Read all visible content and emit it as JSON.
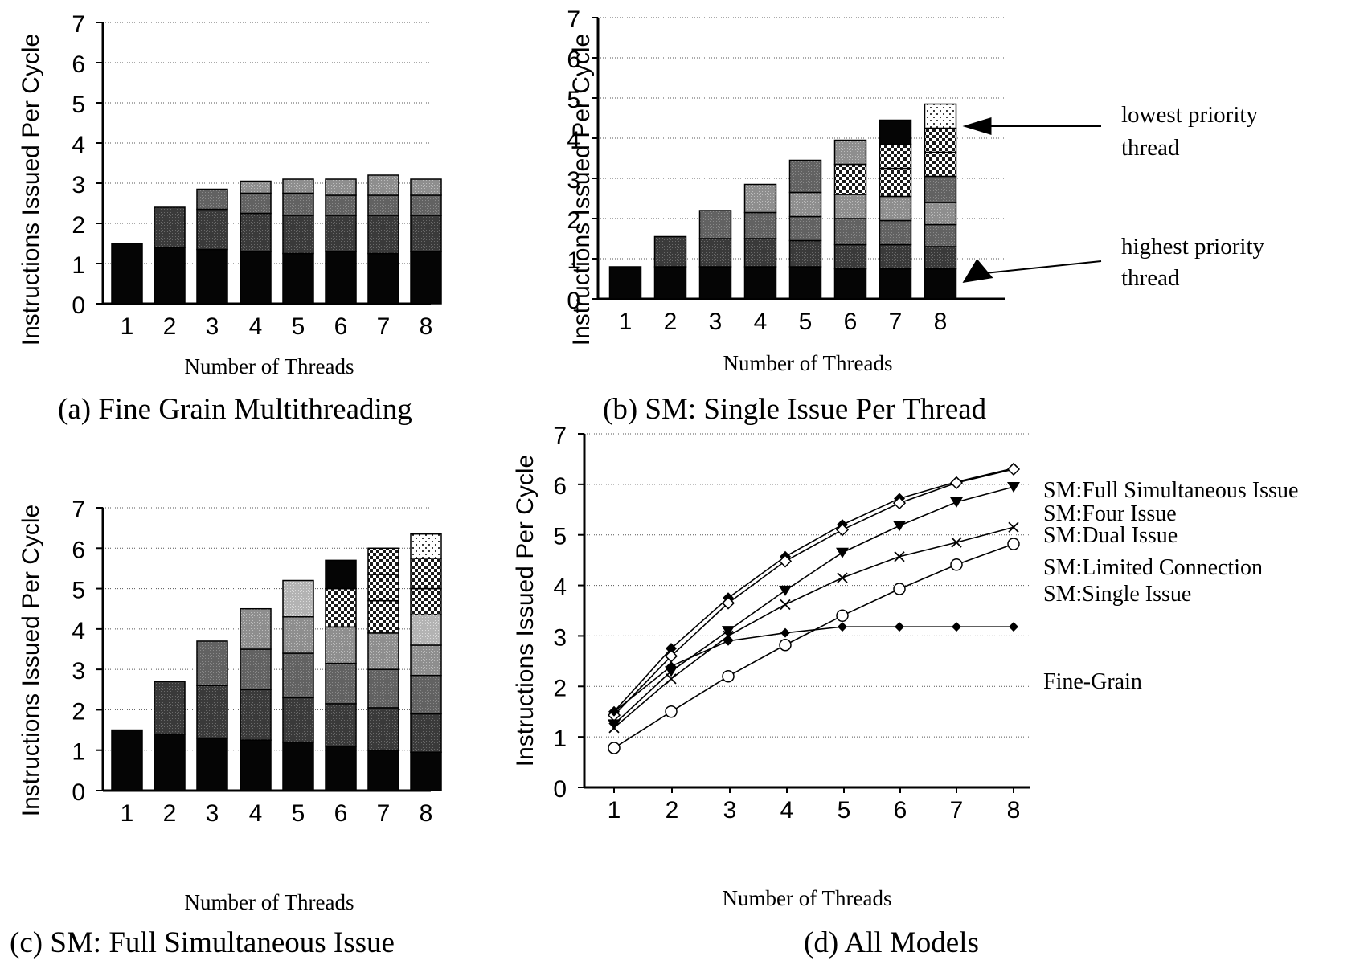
{
  "charts": [
    {
      "type": "stacked-bar",
      "caption": "(a)  Fine Grain Multithreading",
      "xlabel": "Number of Threads",
      "ylabel": "Instructions Issued Per Cycle",
      "ylim": [
        0,
        7
      ],
      "yticks": [
        0,
        1,
        2,
        3,
        4,
        5,
        6,
        7
      ],
      "categories": [
        "1",
        "2",
        "3",
        "4",
        "5",
        "6",
        "7",
        "8"
      ],
      "grid": true,
      "stacks": [
        [
          1.5
        ],
        [
          1.4,
          1.0
        ],
        [
          1.35,
          1.0,
          0.5
        ],
        [
          1.3,
          0.95,
          0.5,
          0.3
        ],
        [
          1.25,
          0.95,
          0.55,
          0.35
        ],
        [
          1.3,
          0.9,
          0.5,
          0.4
        ],
        [
          1.25,
          0.95,
          0.5,
          0.5
        ],
        [
          1.3,
          0.9,
          0.5,
          0.4
        ]
      ]
    },
    {
      "type": "stacked-bar",
      "caption": "(b)  SM: Single Issue Per Thread",
      "xlabel": "Number of Threads",
      "ylabel": "Instructions Issued Per Cycle",
      "ylim": [
        0,
        7
      ],
      "yticks": [
        0,
        1,
        2,
        3,
        4,
        5,
        6,
        7
      ],
      "categories": [
        "1",
        "2",
        "3",
        "4",
        "5",
        "6",
        "7",
        "8"
      ],
      "grid": true,
      "stacks": [
        [
          0.8
        ],
        [
          0.8,
          0.75
        ],
        [
          0.8,
          0.7,
          0.7
        ],
        [
          0.8,
          0.7,
          0.65,
          0.7
        ],
        [
          0.8,
          0.65,
          0.6,
          0.6,
          0.8
        ],
        [
          0.75,
          0.6,
          0.65,
          0.6,
          0.75,
          0.6
        ],
        [
          0.75,
          0.6,
          0.6,
          0.6,
          0.7,
          0.6,
          0.6
        ],
        [
          0.75,
          0.55,
          0.55,
          0.55,
          0.65,
          0.6,
          0.6,
          0.6
        ]
      ],
      "annotations": [
        {
          "text": [
            "lowest  priority",
            "thread"
          ],
          "target": "top of bar 8"
        },
        {
          "text": [
            "highest  priority",
            "thread"
          ],
          "target": "bottom of bar 8"
        }
      ]
    },
    {
      "type": "stacked-bar",
      "caption": "(c)  SM:  Full Simultaneous Issue",
      "xlabel": "Number of Threads",
      "ylabel": "Instructions Issued Per Cycle",
      "ylim": [
        0,
        7
      ],
      "yticks": [
        0,
        1,
        2,
        3,
        4,
        5,
        6,
        7
      ],
      "categories": [
        "1",
        "2",
        "3",
        "4",
        "5",
        "6",
        "7",
        "8"
      ],
      "grid": true,
      "stacks": [
        [
          1.5
        ],
        [
          1.4,
          1.3
        ],
        [
          1.3,
          1.3,
          1.1
        ],
        [
          1.25,
          1.25,
          1.0,
          1.0
        ],
        [
          1.2,
          1.1,
          1.1,
          0.9,
          0.9
        ],
        [
          1.1,
          1.05,
          1.0,
          0.9,
          0.95,
          0.7
        ],
        [
          1.0,
          1.05,
          0.95,
          0.9,
          0.8,
          0.65,
          0.65
        ],
        [
          0.95,
          0.95,
          0.95,
          0.75,
          0.75,
          0.65,
          0.75,
          0.6
        ]
      ]
    },
    {
      "type": "line",
      "caption": "(d)  All Models",
      "xlabel": "Number of Threads",
      "ylabel": "Instructions Issued Per Cycle",
      "ylim": [
        0,
        7
      ],
      "yticks": [
        0,
        1,
        2,
        3,
        4,
        5,
        6,
        7
      ],
      "x": [
        1,
        2,
        3,
        4,
        5,
        6,
        7,
        8
      ],
      "grid": true,
      "series": [
        {
          "name": "SM:Full Simultaneous Issue",
          "marker": "diamond-filled",
          "values": [
            1.5,
            2.75,
            3.75,
            4.57,
            5.2,
            5.72,
            6.05,
            6.32
          ]
        },
        {
          "name": "SM:Four Issue",
          "marker": "diamond-open",
          "values": [
            1.43,
            2.6,
            3.65,
            4.48,
            5.1,
            5.63,
            6.03,
            6.3
          ]
        },
        {
          "name": "SM:Dual Issue",
          "marker": "triangle-down-filled",
          "values": [
            1.25,
            2.3,
            3.1,
            3.9,
            4.65,
            5.18,
            5.65,
            5.95
          ]
        },
        {
          "name": "SM:Limited Connection",
          "marker": "x",
          "values": [
            1.18,
            2.15,
            3.0,
            3.62,
            4.15,
            4.57,
            4.85,
            5.15
          ]
        },
        {
          "name": "SM:Single Issue",
          "marker": "circle-open",
          "values": [
            0.78,
            1.5,
            2.2,
            2.82,
            3.4,
            3.93,
            4.41,
            4.82
          ]
        },
        {
          "name": "Fine-Grain",
          "marker": "diamond-filled-small",
          "values": [
            1.5,
            2.4,
            2.9,
            3.06,
            3.18,
            3.18,
            3.18,
            3.18
          ]
        }
      ]
    }
  ]
}
